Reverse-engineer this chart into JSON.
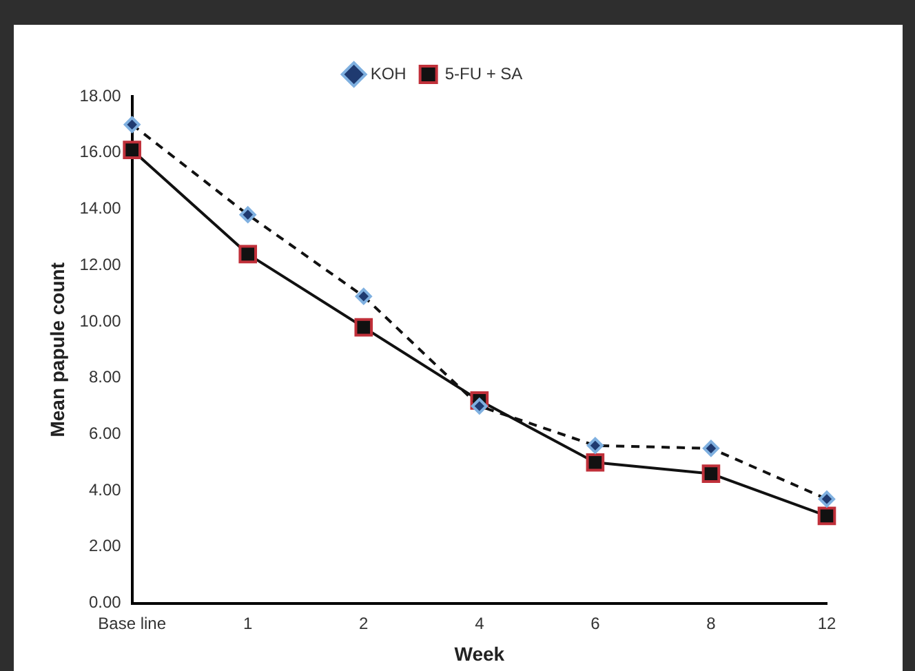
{
  "chart_data": {
    "type": "line",
    "xlabel": "Week",
    "ylabel": "Mean papule count",
    "categories": [
      "Base line",
      "1",
      "2",
      "4",
      "6",
      "8",
      "12"
    ],
    "series": [
      {
        "name": "KOH",
        "color": "#1f3a70",
        "marker": "diamond",
        "line_style": "dashed",
        "values": [
          17.0,
          13.8,
          10.9,
          7.0,
          5.6,
          5.5,
          3.7
        ]
      },
      {
        "name": "5-FU + SA",
        "color": "#c0303a",
        "marker": "square",
        "line_style": "solid",
        "values": [
          16.1,
          12.4,
          9.8,
          7.2,
          5.0,
          4.6,
          3.1
        ]
      }
    ],
    "ylim": [
      0,
      18
    ],
    "yticks": [
      {
        "value": 0,
        "label": "0.00"
      },
      {
        "value": 2,
        "label": "2.00"
      },
      {
        "value": 4,
        "label": "4.00"
      },
      {
        "value": 6,
        "label": "6.00"
      },
      {
        "value": 8,
        "label": "8.00"
      },
      {
        "value": 10,
        "label": "10.00"
      },
      {
        "value": 12,
        "label": "12.00"
      },
      {
        "value": 14,
        "label": "14.00"
      },
      {
        "value": 16,
        "label": "16.00"
      },
      {
        "value": 18,
        "label": "18.00"
      }
    ],
    "grid": false,
    "legend": "top"
  }
}
